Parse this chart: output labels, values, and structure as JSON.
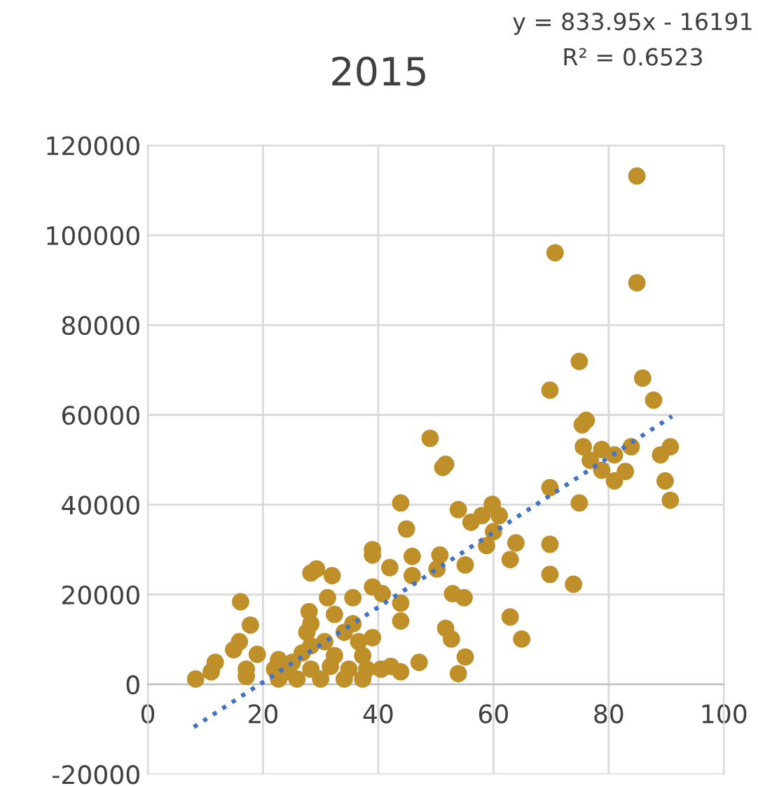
{
  "chart_data": {
    "type": "scatter",
    "title": "2015",
    "annotations": [
      "y = 833.95x - 16191",
      "R² = 0.6523"
    ],
    "xlim": [
      0,
      100
    ],
    "xticks": [
      0,
      20,
      40,
      60,
      80,
      100
    ],
    "ylim": [
      -20000,
      120000
    ],
    "yticks": [
      -20000,
      0,
      20000,
      40000,
      60000,
      80000,
      100000,
      120000
    ],
    "grid": true,
    "legend": false,
    "marker": "circle",
    "series": [
      {
        "color": "#bf8f2a",
        "x": [
          84.9,
          70.7,
          84.9,
          74.9,
          69.8,
          85.9,
          87.8,
          75.4,
          76.1,
          75.6,
          78.8,
          81.0,
          83.9,
          76.8,
          78.8,
          81.0,
          82.9,
          89.0,
          90.7,
          89.8,
          90.7,
          69.8,
          74.9,
          69.8,
          69.8,
          73.9,
          49.0,
          51.2,
          51.7,
          43.9,
          44.9,
          53.9,
          56.1,
          58.0,
          59.8,
          61.0,
          60.0,
          58.8,
          63.9,
          62.9,
          45.9,
          42.0,
          50.7,
          50.2,
          45.9,
          55.1,
          52.9,
          54.9,
          40.7,
          43.9,
          43.9,
          51.7,
          52.7,
          62.9,
          64.9,
          55.1,
          47.1,
          42.2,
          43.9,
          53.9,
          8.3,
          11.7,
          11.0,
          16.1,
          17.8,
          15.9,
          14.9,
          17.1,
          17.1,
          19.0,
          28.3,
          29.3,
          32.0,
          39.0,
          39.0,
          31.2,
          35.6,
          28.0,
          28.3,
          32.4,
          27.6,
          34.1,
          30.7,
          36.6,
          39.0,
          26.8,
          32.4,
          37.3,
          22.7,
          25.1,
          22.0,
          24.4,
          28.3,
          31.7,
          34.9,
          38.0,
          22.7,
          25.9,
          30.0,
          34.1,
          37.3,
          40.5,
          28.3,
          35.6,
          39.0
        ],
        "values": [
          113200,
          96100,
          89400,
          71900,
          65500,
          68200,
          63300,
          57800,
          58800,
          52900,
          52300,
          51100,
          52900,
          49900,
          47700,
          45300,
          47400,
          51100,
          52900,
          45300,
          41000,
          43800,
          40400,
          31200,
          24500,
          22300,
          54800,
          48300,
          49000,
          40400,
          34600,
          38900,
          36100,
          37600,
          40100,
          37600,
          34000,
          30900,
          31500,
          27800,
          28500,
          26000,
          28800,
          25700,
          24200,
          26600,
          20200,
          19300,
          20200,
          18100,
          14100,
          12500,
          10100,
          15000,
          10100,
          6100,
          4900,
          4000,
          2800,
          2400,
          1200,
          4900,
          2800,
          18400,
          13200,
          9500,
          7700,
          3400,
          1800,
          6700,
          24800,
          25700,
          24200,
          30000,
          28800,
          19300,
          19300,
          16200,
          13500,
          15600,
          11600,
          11600,
          9500,
          9500,
          10400,
          7000,
          6400,
          6400,
          5500,
          4900,
          3400,
          2800,
          3400,
          4000,
          3400,
          3400,
          1200,
          1200,
          1200,
          1200,
          1200,
          3400,
          8600,
          13500,
          21700
        ]
      },
      {
        "type": "line",
        "color": "#4472c4",
        "line_style": "dotted",
        "marker": "none",
        "x": [
          8,
          91
        ],
        "values": [
          -9500,
          59700
        ]
      }
    ]
  }
}
